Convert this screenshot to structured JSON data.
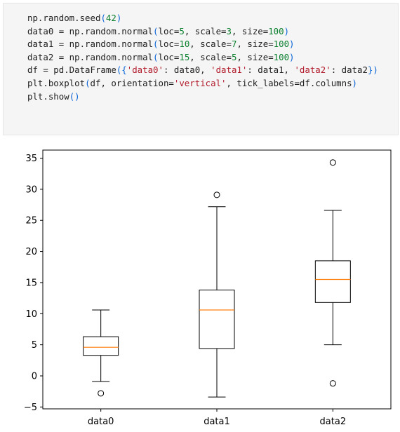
{
  "code_cell": {
    "lines": [
      [
        {
          "t": "np.random.seed",
          "c": "fn"
        },
        {
          "t": "(",
          "c": "p"
        },
        {
          "t": "42",
          "c": "num"
        },
        {
          "t": ")",
          "c": "p"
        }
      ],
      [
        {
          "t": "data0 = np.random.normal",
          "c": "fn"
        },
        {
          "t": "(",
          "c": "p"
        },
        {
          "t": "loc=",
          "c": "fn"
        },
        {
          "t": "5",
          "c": "num"
        },
        {
          "t": ", scale=",
          "c": "fn"
        },
        {
          "t": "3",
          "c": "num"
        },
        {
          "t": ", size=",
          "c": "fn"
        },
        {
          "t": "100",
          "c": "num"
        },
        {
          "t": ")",
          "c": "p"
        }
      ],
      [
        {
          "t": "data1 = np.random.normal",
          "c": "fn"
        },
        {
          "t": "(",
          "c": "p"
        },
        {
          "t": "loc=",
          "c": "fn"
        },
        {
          "t": "10",
          "c": "num"
        },
        {
          "t": ", scale=",
          "c": "fn"
        },
        {
          "t": "7",
          "c": "num"
        },
        {
          "t": ", size=",
          "c": "fn"
        },
        {
          "t": "100",
          "c": "num"
        },
        {
          "t": ")",
          "c": "p"
        }
      ],
      [
        {
          "t": "data2 = np.random.normal",
          "c": "fn"
        },
        {
          "t": "(",
          "c": "p"
        },
        {
          "t": "loc=",
          "c": "fn"
        },
        {
          "t": "15",
          "c": "num"
        },
        {
          "t": ", scale=",
          "c": "fn"
        },
        {
          "t": "5",
          "c": "num"
        },
        {
          "t": ", size=",
          "c": "fn"
        },
        {
          "t": "100",
          "c": "num"
        },
        {
          "t": ")",
          "c": "p"
        }
      ],
      [
        {
          "t": "df = pd.DataFrame",
          "c": "fn"
        },
        {
          "t": "({",
          "c": "p"
        },
        {
          "t": "'data0'",
          "c": "str"
        },
        {
          "t": ": data0, ",
          "c": "fn"
        },
        {
          "t": "'data1'",
          "c": "str"
        },
        {
          "t": ": data1, ",
          "c": "fn"
        },
        {
          "t": "'data2'",
          "c": "str"
        },
        {
          "t": ": data2",
          "c": "fn"
        },
        {
          "t": "})",
          "c": "p"
        }
      ],
      [
        {
          "t": "plt.boxplot",
          "c": "fn"
        },
        {
          "t": "(",
          "c": "p"
        },
        {
          "t": "df, orientation=",
          "c": "fn"
        },
        {
          "t": "'vertical'",
          "c": "str"
        },
        {
          "t": ", tick_labels=df.columns",
          "c": "fn"
        },
        {
          "t": ")",
          "c": "p"
        }
      ],
      [
        {
          "t": "plt.show",
          "c": "fn"
        },
        {
          "t": "()",
          "c": "p"
        }
      ]
    ]
  },
  "chart_data": {
    "type": "boxplot",
    "categories": [
      "data0",
      "data1",
      "data2"
    ],
    "boxes": [
      {
        "name": "data0",
        "whisker_low": -0.9,
        "q1": 3.3,
        "median": 4.6,
        "q3": 6.3,
        "whisker_high": 10.6,
        "outliers": [
          -2.8
        ]
      },
      {
        "name": "data1",
        "whisker_low": -3.4,
        "q1": 4.4,
        "median": 10.6,
        "q3": 13.8,
        "whisker_high": 27.2,
        "outliers": [
          29.1
        ]
      },
      {
        "name": "data2",
        "whisker_low": 5.0,
        "q1": 11.8,
        "median": 15.5,
        "q3": 18.5,
        "whisker_high": 26.6,
        "outliers": [
          34.3,
          -1.2
        ]
      }
    ],
    "y_ticks": [
      -5,
      0,
      5,
      10,
      15,
      20,
      25,
      30,
      35
    ],
    "ylim": [
      -5.3,
      36.3
    ],
    "title": "",
    "xlabel": "",
    "ylabel": "",
    "grid": false,
    "colors": {
      "median": "#ff7f0e",
      "box": "#000000",
      "frame": "#000000"
    }
  }
}
